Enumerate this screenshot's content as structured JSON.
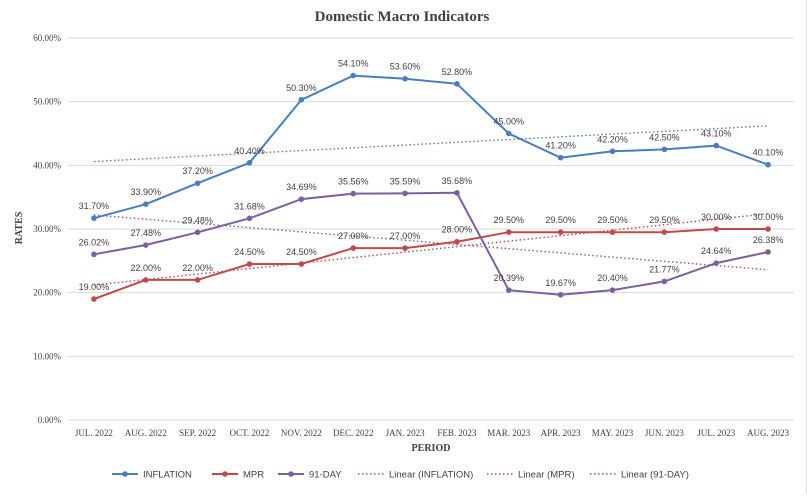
{
  "chart_data": {
    "type": "line",
    "title": "Domestic Macro Indicators",
    "xlabel": "PERIOD",
    "ylabel": "RATES",
    "ylim": [
      0,
      60
    ],
    "y_ticks": [
      "0.00%",
      "10.00%",
      "20.00%",
      "30.00%",
      "40.00%",
      "50.00%",
      "60.00%"
    ],
    "grid": "horizontal",
    "legend_position": "bottom",
    "categories": [
      "JUL. 2022",
      "AUG. 2022",
      "SEP. 2022",
      "OCT. 2022",
      "NOV. 2022",
      "DEC. 2022",
      "JAN. 2023",
      "FEB. 2023",
      "MAR. 2023",
      "APR. 2023",
      "MAY. 2023",
      "JUN. 2023",
      "JUL. 2023",
      "AUG. 2023"
    ],
    "series": [
      {
        "name": "INFLATION",
        "color": "#4a7ebb",
        "values": [
          31.7,
          33.9,
          37.2,
          40.4,
          50.3,
          54.1,
          53.6,
          52.8,
          45.0,
          41.2,
          42.2,
          42.5,
          43.1,
          40.1
        ],
        "labels": [
          "31.70%",
          "33.90%",
          "37.20%",
          "40.40%",
          "50.30%",
          "54.10%",
          "53.60%",
          "52.80%",
          "45.00%",
          "41.20%",
          "42.20%",
          "42.50%",
          "43.10%",
          "40.10%"
        ]
      },
      {
        "name": "MPR",
        "color": "#be4b48",
        "values": [
          19.0,
          22.0,
          22.0,
          24.5,
          24.5,
          27.0,
          27.0,
          28.0,
          29.5,
          29.5,
          29.5,
          29.5,
          30.0,
          30.0
        ],
        "labels": [
          "19.00%",
          "22.00%",
          "22.00%",
          "24.50%",
          "24.50%",
          "27.00%",
          "27.00%",
          "28.00%",
          "29.50%",
          "29.50%",
          "29.50%",
          "29.50%",
          "30.00%",
          "30.00%"
        ]
      },
      {
        "name": "91-DAY",
        "color": "#7d5fa0",
        "values": [
          26.02,
          27.48,
          29.48,
          31.68,
          34.69,
          35.56,
          35.59,
          35.68,
          20.39,
          19.67,
          20.4,
          21.77,
          24.64,
          26.38
        ],
        "labels": [
          "26.02%",
          "27.48%",
          "29.48%",
          "31.68%",
          "34.69%",
          "35.56%",
          "35.59%",
          "35.68%",
          "20.39%",
          "19.67%",
          "20.40%",
          "21.77%",
          "24.64%",
          "26.38%"
        ]
      }
    ],
    "trendlines": [
      {
        "name": "Linear (INFLATION)",
        "of": "INFLATION",
        "color": "#4a7ebb",
        "values": [
          40.6,
          46.2
        ]
      },
      {
        "name": "Linear (MPR)",
        "of": "MPR",
        "color": "#be4b48",
        "values": [
          21.2,
          32.4
        ]
      },
      {
        "name": "Linear (91-DAY)",
        "of": "91-DAY",
        "color": "#7d5fa0",
        "values": [
          32.2,
          23.6
        ]
      }
    ]
  }
}
